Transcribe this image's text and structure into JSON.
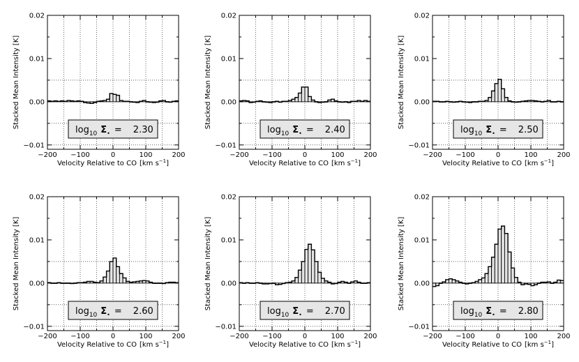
{
  "axes": {
    "xlabel": "Velocity Relative to CO",
    "xunit_prefix": "[km s",
    "xunit_exp": "−1",
    "xunit_suffix": "]",
    "ylabel": "Stacked Mean Intensity [K]",
    "xlim": [
      -200,
      200
    ],
    "ylim": [
      -0.011,
      0.02
    ],
    "xticks": [
      -200,
      -100,
      0,
      100,
      200
    ],
    "xtick_labels": [
      "−200",
      "−100",
      "0",
      "100",
      "200"
    ],
    "yticks": [
      -0.01,
      0.0,
      0.01,
      0.02
    ],
    "ytick_labels": [
      "−0.01",
      "0.00",
      "0.01",
      "0.02"
    ],
    "grid": true,
    "grid_style": "dotted"
  },
  "colors": {
    "bar_fill": "#e4e4e4",
    "box_fill": "#e6e6e6",
    "line": "#000000"
  },
  "chart_data": [
    {
      "type": "bar",
      "label_prefix": "log",
      "label_sub": "10",
      "label_symbol": "Σ",
      "label_sub2": "•",
      "label_eq": "=",
      "label_value": "2.30",
      "x": [
        -195,
        -185,
        -175,
        -165,
        -155,
        -145,
        -135,
        -125,
        -115,
        -105,
        -95,
        -85,
        -75,
        -65,
        -55,
        -45,
        -35,
        -25,
        -15,
        -5,
        5,
        15,
        25,
        35,
        45,
        55,
        65,
        75,
        85,
        95,
        105,
        115,
        125,
        135,
        145,
        155,
        165,
        175,
        185,
        195
      ],
      "values": [
        0.0002,
        0.0001,
        0.0002,
        0.0001,
        0.0002,
        0.0001,
        0.0003,
        0.0002,
        0.0001,
        0.0002,
        0.0001,
        -0.0002,
        -0.0003,
        -0.0004,
        -0.0002,
        0.0001,
        0.0002,
        0.0003,
        0.0006,
        0.0019,
        0.0017,
        0.0015,
        0.0003,
        0.0001,
        0.0001,
        0.0,
        -0.0001,
        -0.0002,
        0.0001,
        0.0003,
        0.0,
        -0.0001,
        -0.0002,
        -0.0001,
        0.0002,
        0.0003,
        0.0,
        -0.0001,
        0.0001,
        0.0002
      ]
    },
    {
      "type": "bar",
      "label_prefix": "log",
      "label_sub": "10",
      "label_symbol": "Σ",
      "label_sub2": "•",
      "label_eq": "=",
      "label_value": "2.40",
      "x": [
        -195,
        -185,
        -175,
        -165,
        -155,
        -145,
        -135,
        -125,
        -115,
        -105,
        -95,
        -85,
        -75,
        -65,
        -55,
        -45,
        -35,
        -25,
        -15,
        -5,
        5,
        15,
        25,
        35,
        45,
        55,
        65,
        75,
        85,
        95,
        105,
        115,
        125,
        135,
        145,
        155,
        165,
        175,
        185,
        195
      ],
      "values": [
        0.0002,
        0.0003,
        0.0002,
        -0.0002,
        -0.0001,
        0.0001,
        0.0002,
        0.0,
        -0.0001,
        -0.0002,
        0.0,
        0.0001,
        -0.0001,
        0.0001,
        0.0001,
        0.0003,
        0.0006,
        0.001,
        0.002,
        0.0034,
        0.0034,
        0.0012,
        0.0004,
        0.0,
        -0.0002,
        -0.0001,
        0.0,
        0.0004,
        0.0006,
        0.0002,
        0.0,
        -0.0001,
        0.0,
        -0.0002,
        0.0001,
        0.0001,
        0.0003,
        0.0001,
        0.0003,
        0.0001
      ]
    },
    {
      "type": "bar",
      "label_prefix": "log",
      "label_sub": "10",
      "label_symbol": "Σ",
      "label_sub2": "•",
      "label_eq": "=",
      "label_value": "2.50",
      "x": [
        -195,
        -185,
        -175,
        -165,
        -155,
        -145,
        -135,
        -125,
        -115,
        -105,
        -95,
        -85,
        -75,
        -65,
        -55,
        -45,
        -35,
        -25,
        -15,
        -5,
        5,
        15,
        25,
        35,
        45,
        55,
        65,
        75,
        85,
        95,
        105,
        115,
        125,
        135,
        145,
        155,
        165,
        175,
        185,
        195
      ],
      "values": [
        0.0001,
        0.0001,
        0.0,
        0.0,
        0.0001,
        0.0,
        -0.0001,
        0.0,
        0.0001,
        0.0,
        -0.0001,
        -0.0002,
        0.0,
        0.0,
        0.0001,
        0.0001,
        0.0003,
        0.001,
        0.0025,
        0.0042,
        0.0052,
        0.003,
        0.001,
        0.0002,
        0.0,
        -0.0001,
        0.0,
        0.0001,
        0.0002,
        0.0003,
        0.0003,
        0.0002,
        0.0001,
        0.0,
        0.0001,
        0.0003,
        0.0,
        0.0,
        0.0001,
        0.0
      ]
    },
    {
      "type": "bar",
      "label_prefix": "log",
      "label_sub": "10",
      "label_symbol": "Σ",
      "label_sub2": "•",
      "label_eq": "=",
      "label_value": "2.60",
      "x": [
        -195,
        -185,
        -175,
        -165,
        -155,
        -145,
        -135,
        -125,
        -115,
        -105,
        -95,
        -85,
        -75,
        -65,
        -55,
        -45,
        -35,
        -25,
        -15,
        -5,
        5,
        15,
        25,
        35,
        45,
        55,
        65,
        75,
        85,
        95,
        105,
        115,
        125,
        135,
        145,
        155,
        165,
        175,
        185,
        195
      ],
      "values": [
        0.0001,
        0.0,
        0.0,
        0.0001,
        0.0,
        0.0,
        0.0,
        -0.0001,
        0.0,
        0.0001,
        0.0001,
        0.0002,
        0.0004,
        0.0004,
        0.0002,
        0.0001,
        0.0005,
        0.0014,
        0.0028,
        0.005,
        0.0058,
        0.0038,
        0.0022,
        0.0012,
        0.0004,
        0.0002,
        0.0003,
        0.0004,
        0.0005,
        0.0006,
        0.0005,
        0.0002,
        0.0,
        0.0,
        0.0,
        -0.0001,
        0.0001,
        0.0002,
        0.0002,
        0.0001
      ]
    },
    {
      "type": "bar",
      "label_prefix": "log",
      "label_sub": "10",
      "label_symbol": "Σ",
      "label_sub2": "•",
      "label_eq": "=",
      "label_value": "2.70",
      "x": [
        -195,
        -185,
        -175,
        -165,
        -155,
        -145,
        -135,
        -125,
        -115,
        -105,
        -95,
        -85,
        -75,
        -65,
        -55,
        -45,
        -35,
        -25,
        -15,
        -5,
        5,
        15,
        25,
        35,
        45,
        55,
        65,
        75,
        85,
        95,
        105,
        115,
        125,
        135,
        145,
        155,
        165,
        175,
        185,
        195
      ],
      "values": [
        0.0001,
        0.0,
        0.0001,
        0.0,
        0.0,
        0.0001,
        0.0,
        -0.0002,
        -0.0002,
        -0.0001,
        0.0,
        -0.0004,
        -0.0003,
        -0.0001,
        0.0001,
        0.0002,
        0.0005,
        0.0013,
        0.003,
        0.005,
        0.0078,
        0.009,
        0.0077,
        0.005,
        0.0025,
        0.0011,
        0.0005,
        0.0002,
        -0.0002,
        -0.0001,
        0.0002,
        0.0004,
        0.0002,
        0.0,
        0.0003,
        0.0005,
        0.0002,
        0.0,
        0.0,
        0.0001
      ]
    },
    {
      "type": "bar",
      "label_prefix": "log",
      "label_sub": "10",
      "label_symbol": "Σ",
      "label_sub2": "•",
      "label_eq": "=",
      "label_value": "2.80",
      "x": [
        -195,
        -185,
        -175,
        -165,
        -155,
        -145,
        -135,
        -125,
        -115,
        -105,
        -95,
        -85,
        -75,
        -65,
        -55,
        -45,
        -35,
        -25,
        -15,
        -5,
        5,
        15,
        25,
        35,
        45,
        55,
        65,
        75,
        85,
        95,
        105,
        115,
        125,
        135,
        145,
        155,
        165,
        175,
        185,
        195
      ],
      "values": [
        -0.0008,
        -0.0006,
        0.0,
        0.0003,
        0.0008,
        0.001,
        0.0008,
        0.0005,
        0.0002,
        0.0,
        -0.0002,
        0.0,
        0.0001,
        0.0004,
        0.0008,
        0.0012,
        0.0022,
        0.0038,
        0.006,
        0.009,
        0.0125,
        0.0132,
        0.0115,
        0.0072,
        0.0035,
        0.0013,
        0.0002,
        -0.0004,
        -0.0002,
        -0.0003,
        -0.0006,
        -0.0004,
        0.0,
        0.0002,
        0.0002,
        0.0003,
        0.0,
        0.0002,
        0.0007,
        0.0006
      ]
    }
  ]
}
